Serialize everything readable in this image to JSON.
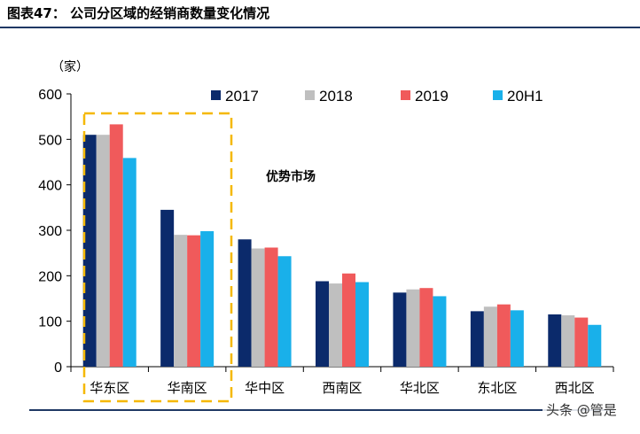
{
  "figure_title": "图表47：  公司分区域的经销商数量变化情况",
  "watermark": "头条 @管是",
  "colors": {
    "2017": "#0b2a6b",
    "2018": "#bfbfbf",
    "2019": "#f05a5b",
    "20H1": "#19b0ea",
    "highlight_box": "#f5b800",
    "rule": "#1f3864"
  },
  "chart_data": {
    "type": "bar",
    "unit_label": "（家）",
    "categories": [
      "华东区",
      "华南区",
      "华中区",
      "西南区",
      "华北区",
      "东北区",
      "西北区"
    ],
    "series": [
      {
        "name": "2017",
        "values": [
          510,
          345,
          280,
          188,
          163,
          122,
          115
        ]
      },
      {
        "name": "2018",
        "values": [
          510,
          290,
          260,
          183,
          170,
          132,
          113
        ]
      },
      {
        "name": "2019",
        "values": [
          533,
          289,
          262,
          205,
          173,
          137,
          108
        ]
      },
      {
        "name": "20H1",
        "values": [
          459,
          298,
          243,
          186,
          155,
          124,
          92
        ]
      }
    ],
    "ylim": [
      0,
      600
    ],
    "yticks": [
      0,
      100,
      200,
      300,
      400,
      500,
      600
    ],
    "legend_position": "top",
    "highlight": {
      "label": "优势市场",
      "categories": [
        "华东区",
        "华南区"
      ]
    }
  }
}
